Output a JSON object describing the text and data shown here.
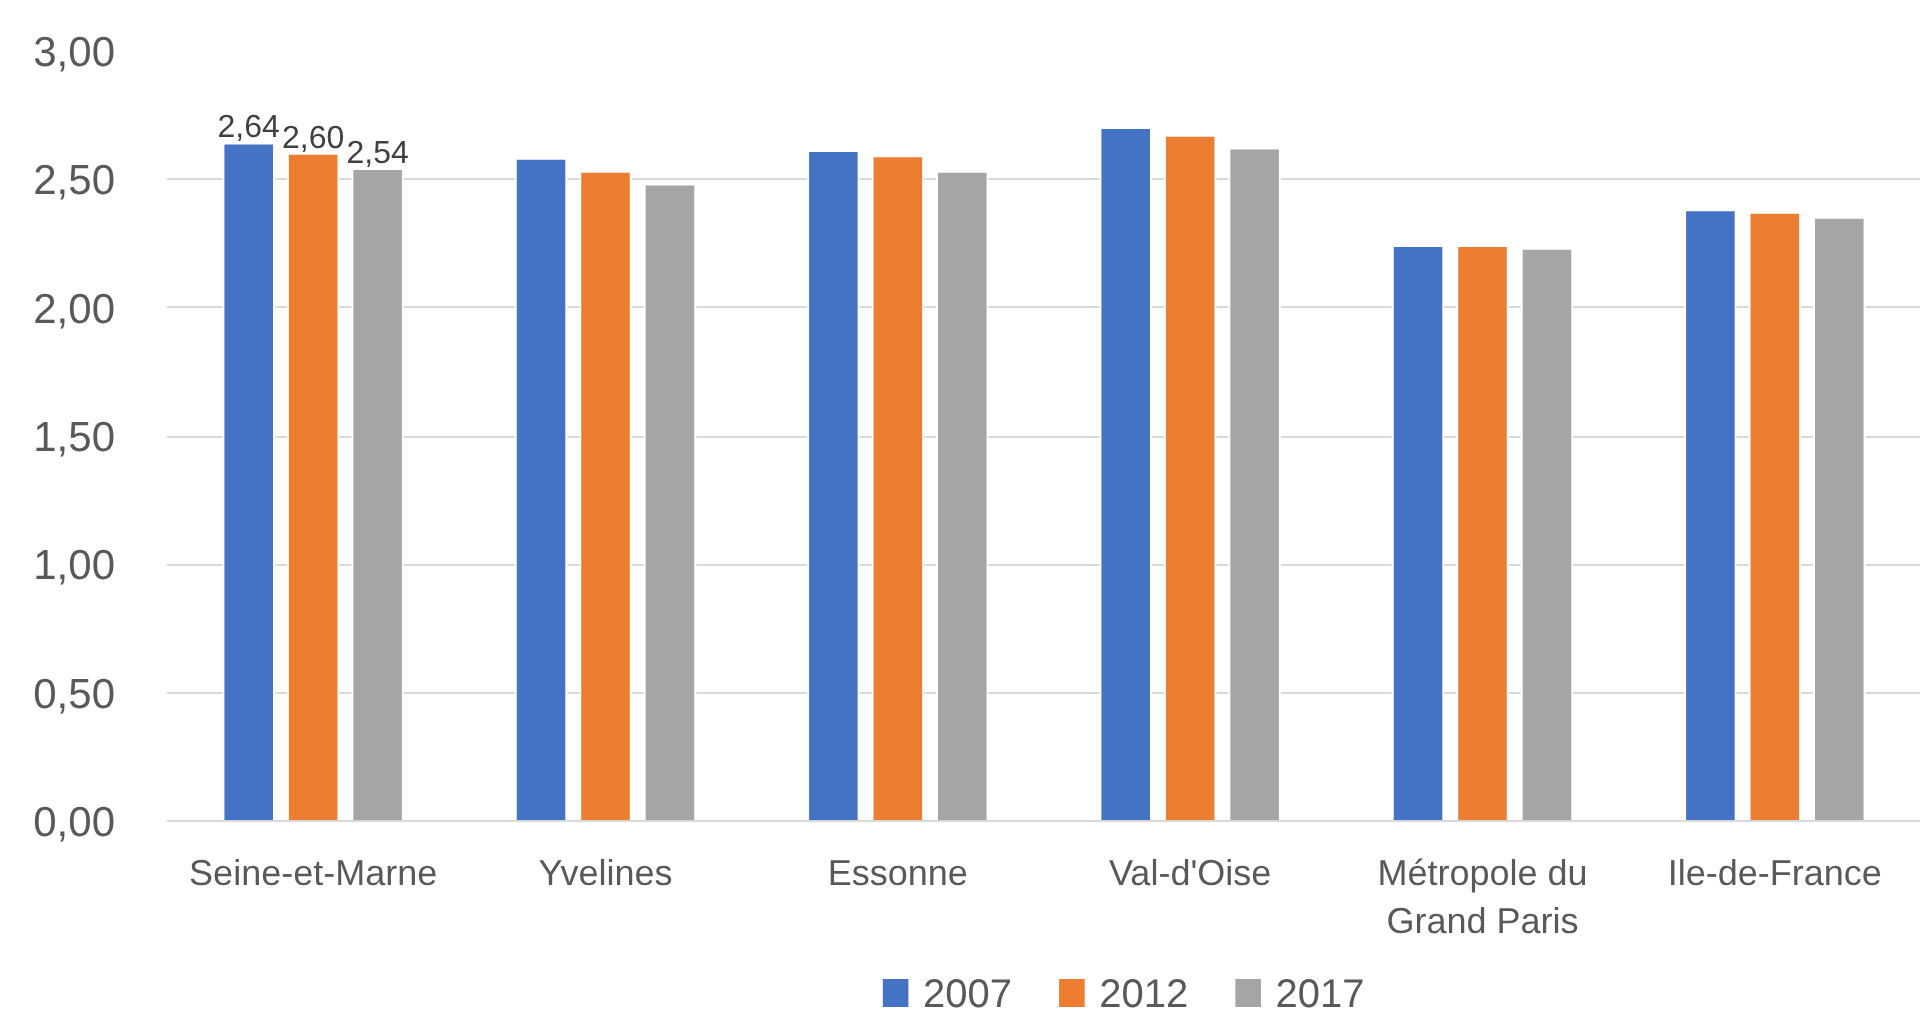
{
  "chart_data": {
    "type": "bar",
    "categories": [
      "Seine-et-Marne",
      "Yvelines",
      "Essonne",
      "Val-d'Oise",
      "Métropole du Grand Paris",
      "Ile-de-France"
    ],
    "series": [
      {
        "name": "2007",
        "color": "#4472c4",
        "values": [
          2.64,
          2.58,
          2.61,
          2.7,
          2.24,
          2.38
        ],
        "value_labels": [
          "2,64",
          null,
          null,
          null,
          null,
          null
        ]
      },
      {
        "name": "2012",
        "color": "#ed7d31",
        "values": [
          2.6,
          2.53,
          2.59,
          2.67,
          2.24,
          2.37
        ],
        "value_labels": [
          "2,60",
          null,
          null,
          null,
          null,
          null
        ]
      },
      {
        "name": "2017",
        "color": "#a5a5a5",
        "values": [
          2.54,
          2.48,
          2.53,
          2.62,
          2.23,
          2.35
        ],
        "value_labels": [
          "2,54",
          null,
          null,
          null,
          null,
          null
        ]
      }
    ],
    "ylim": [
      0,
      3
    ],
    "yticks": [
      {
        "value": 0,
        "label": "0,00"
      },
      {
        "value": 0.5,
        "label": "0,50"
      },
      {
        "value": 1,
        "label": "1,00"
      },
      {
        "value": 1.5,
        "label": "1,50"
      },
      {
        "value": 2,
        "label": "2,00"
      },
      {
        "value": 2.5,
        "label": "2,50"
      },
      {
        "value": 3,
        "label": "3,00"
      }
    ],
    "grid": "y",
    "legend": "bottom"
  }
}
